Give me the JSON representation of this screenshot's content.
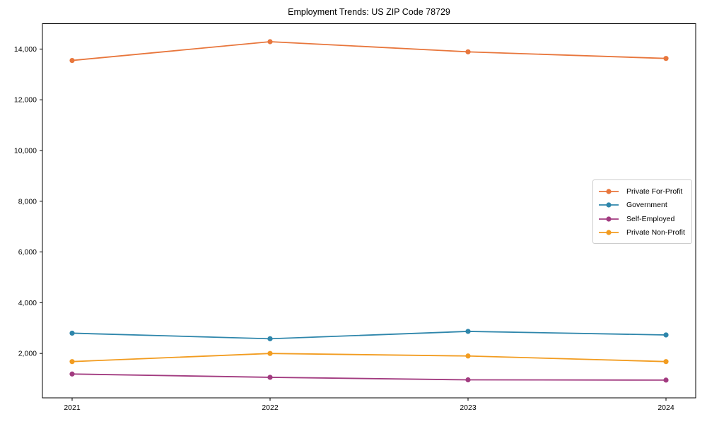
{
  "title": "Employment Trends: US ZIP Code 78729",
  "chart_data": {
    "type": "line",
    "title": "Employment Trends: US ZIP Code 78729",
    "xlabel": "",
    "ylabel": "",
    "x": [
      2021,
      2022,
      2023,
      2024
    ],
    "xtick_labels": [
      "2021",
      "2022",
      "2023",
      "2024"
    ],
    "series": [
      {
        "name": "Private For-Profit",
        "color": "#E8763C",
        "values": [
          13550,
          14290,
          13890,
          13630
        ]
      },
      {
        "name": "Government",
        "color": "#2E86AB",
        "values": [
          2800,
          2580,
          2870,
          2730
        ]
      },
      {
        "name": "Self-Employed",
        "color": "#A23B80",
        "values": [
          1190,
          1060,
          960,
          950
        ]
      },
      {
        "name": "Private Non-Profit",
        "color": "#F29C20",
        "values": [
          1680,
          2000,
          1900,
          1680
        ]
      }
    ],
    "xlim": [
      2020.85,
      2024.15
    ],
    "ylim": [
      250,
      15000
    ],
    "yticks": [
      2000,
      4000,
      6000,
      8000,
      10000,
      12000,
      14000
    ],
    "grid": false,
    "legend_position": "center-right",
    "marker": "circle",
    "spine_color": "#000000",
    "background": "#ffffff"
  }
}
